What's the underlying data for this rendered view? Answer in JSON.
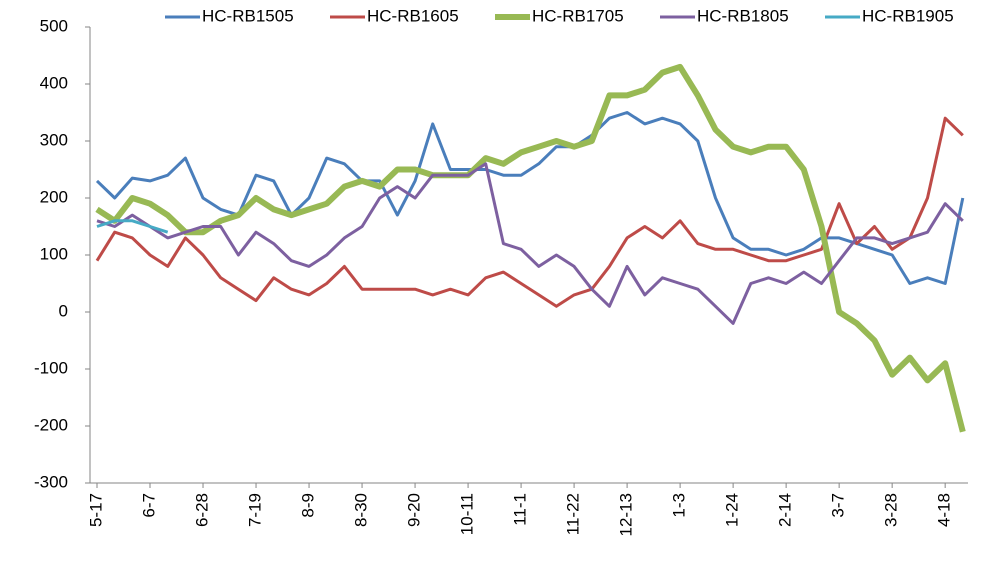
{
  "chart_data": {
    "type": "line",
    "categories": [
      "5-17",
      null,
      null,
      "6-7",
      null,
      null,
      "6-28",
      null,
      null,
      "7-19",
      null,
      null,
      "8-9",
      null,
      null,
      "8-30",
      null,
      null,
      "9-20",
      null,
      null,
      "10-11",
      null,
      null,
      "11-1",
      null,
      null,
      "11-22",
      null,
      null,
      "12-13",
      null,
      null,
      "1-3",
      null,
      null,
      "1-24",
      null,
      null,
      "2-14",
      null,
      null,
      "3-7",
      null,
      null,
      "3-28",
      null,
      null,
      "4-18",
      null
    ],
    "series": [
      {
        "name": "HC-RB1505",
        "color": "#4a7ebb",
        "width": 3,
        "values": [
          230,
          200,
          235,
          230,
          240,
          270,
          200,
          180,
          170,
          240,
          230,
          170,
          200,
          270,
          260,
          230,
          230,
          170,
          230,
          330,
          250,
          250,
          250,
          240,
          240,
          260,
          290,
          290,
          310,
          340,
          350,
          330,
          340,
          330,
          300,
          200,
          130,
          110,
          110,
          100,
          110,
          130,
          130,
          120,
          110,
          100,
          50,
          60,
          50,
          200
        ]
      },
      {
        "name": "HC-RB1605",
        "color": "#be4b48",
        "width": 3,
        "values": [
          90,
          140,
          130,
          100,
          80,
          130,
          100,
          60,
          40,
          20,
          60,
          40,
          30,
          50,
          80,
          40,
          40,
          40,
          40,
          30,
          40,
          30,
          60,
          70,
          50,
          30,
          10,
          30,
          40,
          80,
          130,
          150,
          130,
          160,
          120,
          110,
          110,
          100,
          90,
          90,
          100,
          110,
          190,
          120,
          150,
          110,
          130,
          200,
          340,
          310
        ]
      },
      {
        "name": "HC-RB1705",
        "color": "#98b954",
        "width": 6,
        "values": [
          180,
          160,
          200,
          190,
          170,
          140,
          140,
          160,
          170,
          200,
          180,
          170,
          180,
          190,
          220,
          230,
          220,
          250,
          250,
          240,
          240,
          240,
          270,
          260,
          280,
          290,
          300,
          290,
          300,
          380,
          380,
          390,
          420,
          430,
          380,
          320,
          290,
          280,
          290,
          290,
          250,
          150,
          0,
          -20,
          -50,
          -110,
          -80,
          -120,
          -90,
          -210
        ]
      },
      {
        "name": "HC-RB1805",
        "color": "#7d60a0",
        "width": 3,
        "values": [
          160,
          150,
          170,
          150,
          130,
          140,
          150,
          150,
          100,
          140,
          120,
          90,
          80,
          100,
          130,
          150,
          200,
          220,
          200,
          240,
          240,
          240,
          260,
          120,
          110,
          80,
          100,
          80,
          40,
          10,
          80,
          30,
          60,
          50,
          40,
          10,
          -20,
          50,
          60,
          50,
          70,
          50,
          90,
          130,
          130,
          120,
          130,
          140,
          190,
          160
        ]
      },
      {
        "name": "HC-RB1905",
        "color": "#46aac5",
        "width": 3,
        "values": [
          150,
          160,
          160,
          150,
          140,
          null,
          null,
          null,
          null,
          null,
          null,
          null,
          null,
          null,
          null,
          null,
          null,
          null,
          null,
          null,
          null,
          null,
          null,
          null,
          null,
          null,
          null,
          null,
          null,
          null,
          null,
          null,
          null,
          null,
          null,
          null,
          null,
          null,
          null,
          null,
          null,
          null,
          null,
          null,
          null,
          null,
          null,
          null,
          null,
          null
        ]
      }
    ],
    "ylim": [
      -300,
      500
    ],
    "yticks": [
      -300,
      -200,
      -100,
      0,
      100,
      200,
      300,
      400,
      500
    ],
    "legend": "top",
    "grid": false
  }
}
